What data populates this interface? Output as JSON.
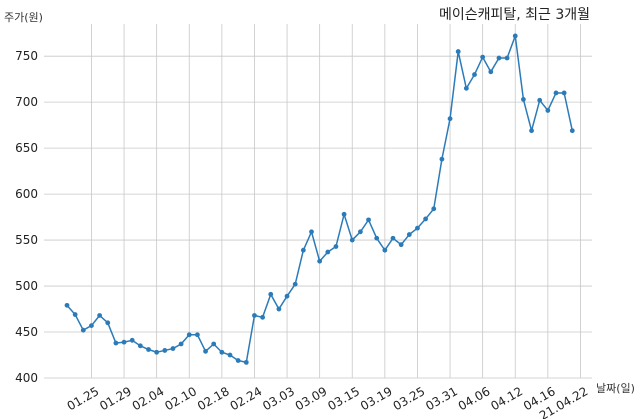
{
  "chart_data": {
    "type": "line",
    "title": "메이슨캐피탈, 최근 3개월",
    "ylabel": "주가(원)",
    "xlabel": "날짜(일)",
    "ylim": [
      400,
      785
    ],
    "yticks": [
      400,
      450,
      500,
      550,
      600,
      650,
      700,
      750
    ],
    "grid": true,
    "line_color": "#2b7bb9",
    "xtick_labels": [
      "01.25",
      "01.29",
      "02.04",
      "02.10",
      "02.18",
      "02.24",
      "03.03",
      "03.09",
      "03.15",
      "03.19",
      "03.25",
      "03.31",
      "04.06",
      "04.12",
      "04.16",
      "21.04.22"
    ],
    "xtick_indices": [
      3,
      7,
      11,
      15,
      19,
      23,
      27,
      31,
      35,
      39,
      43,
      47,
      51,
      55,
      59,
      63
    ],
    "series": [
      {
        "values": [
          479,
          469,
          452,
          457,
          468,
          460,
          438,
          439,
          441,
          435,
          431,
          428,
          430,
          432,
          437,
          447,
          447,
          429,
          437,
          428,
          425,
          419,
          417,
          468,
          466,
          491,
          475,
          489,
          502,
          539,
          559,
          527,
          537,
          543,
          578,
          550,
          559,
          572,
          552,
          539,
          552,
          545,
          556,
          563,
          573,
          584,
          638,
          682,
          755,
          715,
          730,
          749,
          733,
          748,
          748,
          772,
          703,
          669,
          702,
          691,
          710,
          710,
          669
        ]
      }
    ]
  }
}
